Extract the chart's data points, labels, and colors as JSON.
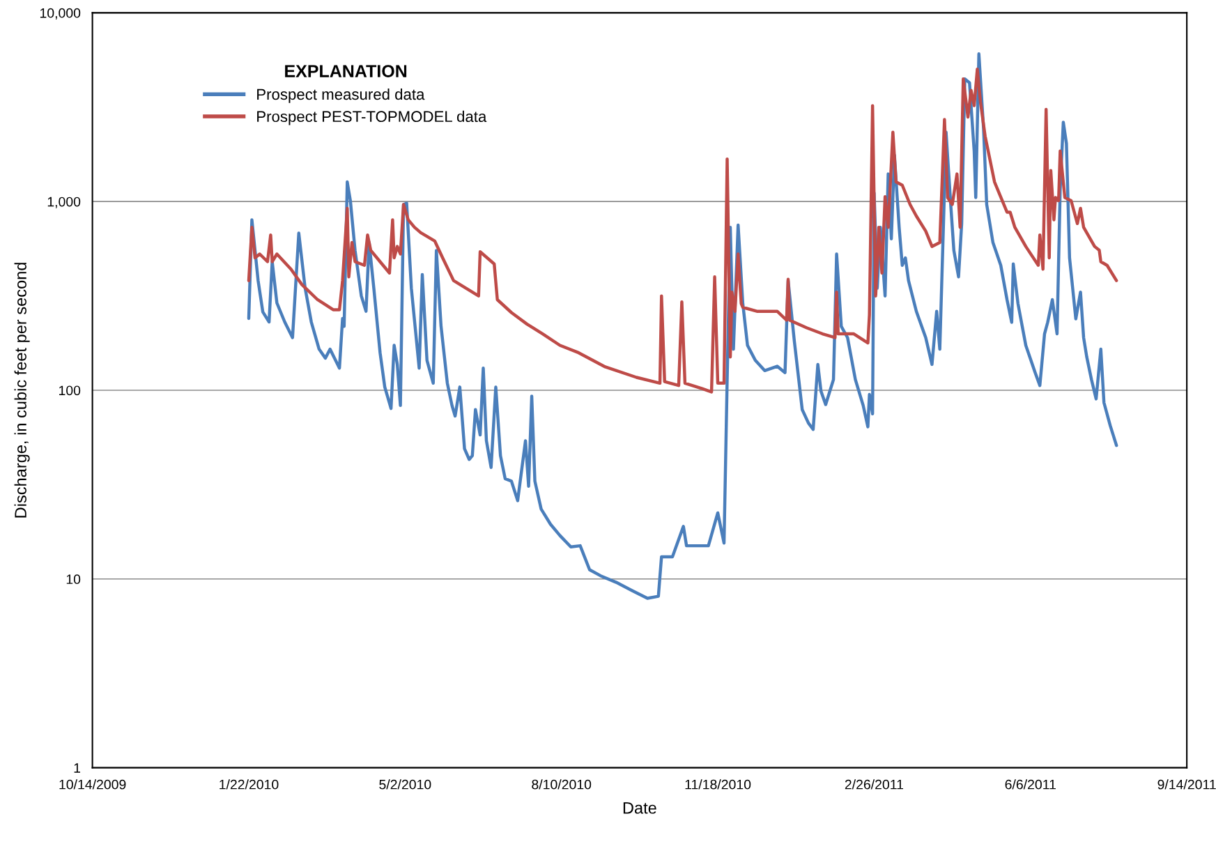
{
  "chart_data": {
    "type": "line",
    "xlabel": "Date",
    "ylabel": "Discharge, in cubic feet per second",
    "legend_title": "EXPLANATION",
    "legend": "top left",
    "grid": "y",
    "log": "y",
    "line_style": "solid",
    "marker": "none",
    "xlim": [
      "2009-10-14",
      "2011-09-14"
    ],
    "xticks": [
      {
        "value": "2009-10-14",
        "label": "10/14/2009"
      },
      {
        "value": "2010-01-22",
        "label": "1/22/2010"
      },
      {
        "value": "2010-05-02",
        "label": "5/2/2010"
      },
      {
        "value": "2010-08-10",
        "label": "8/10/2010"
      },
      {
        "value": "2010-11-18",
        "label": "11/18/2010"
      },
      {
        "value": "2011-02-26",
        "label": "2/26/2011"
      },
      {
        "value": "2011-06-06",
        "label": "6/6/2011"
      },
      {
        "value": "2011-09-14",
        "label": "9/14/2011"
      }
    ],
    "ylim": [
      1,
      10000
    ],
    "yticks": [
      1,
      10,
      100,
      {
        "value": 1000,
        "label": "1,000"
      },
      {
        "value": 10000,
        "label": "10,000"
      }
    ],
    "series": [
      {
        "name": "Prospect measured data",
        "color": "#4a7ebb",
        "x": [
          "2010-01-22",
          "2010-01-24",
          "2010-01-28",
          "2010-01-31",
          "2010-02-04",
          "2010-02-06",
          "2010-02-09",
          "2010-02-14",
          "2010-02-19",
          "2010-02-23",
          "2010-02-27",
          "2010-03-03",
          "2010-03-08",
          "2010-03-12",
          "2010-03-15",
          "2010-03-21",
          "2010-03-23",
          "2010-03-24",
          "2010-03-26",
          "2010-03-28",
          "2010-03-31",
          "2010-04-04",
          "2010-04-07",
          "2010-04-09",
          "2010-04-12",
          "2010-04-16",
          "2010-04-19",
          "2010-04-23",
          "2010-04-25",
          "2010-04-27",
          "2010-04-29",
          "2010-05-01",
          "2010-05-03",
          "2010-05-06",
          "2010-05-11",
          "2010-05-13",
          "2010-05-16",
          "2010-05-20",
          "2010-05-22",
          "2010-05-25",
          "2010-05-29",
          "2010-06-01",
          "2010-06-03",
          "2010-06-06",
          "2010-06-09",
          "2010-06-12",
          "2010-06-14",
          "2010-06-16",
          "2010-06-19",
          "2010-06-21",
          "2010-06-23",
          "2010-06-26",
          "2010-06-29",
          "2010-07-02",
          "2010-07-05",
          "2010-07-09",
          "2010-07-13",
          "2010-07-18",
          "2010-07-20",
          "2010-07-22",
          "2010-07-24",
          "2010-07-28",
          "2010-08-03",
          "2010-08-09",
          "2010-08-16",
          "2010-08-22",
          "2010-08-28",
          "2010-09-04",
          "2010-09-14",
          "2010-09-24",
          "2010-10-04",
          "2010-10-11",
          "2010-10-13",
          "2010-10-20",
          "2010-10-27",
          "2010-10-29",
          "2010-11-12",
          "2010-11-18",
          "2010-11-22",
          "2010-11-24",
          "2010-11-26",
          "2010-11-28",
          "2010-12-01",
          "2010-12-04",
          "2010-12-07",
          "2010-12-12",
          "2010-12-18",
          "2010-12-26",
          "2010-12-31",
          "2011-01-02",
          "2011-01-06",
          "2011-01-11",
          "2011-01-15",
          "2011-01-18",
          "2011-01-21",
          "2011-01-23",
          "2011-01-26",
          "2011-01-31",
          "2011-02-02",
          "2011-02-05",
          "2011-02-09",
          "2011-02-14",
          "2011-02-19",
          "2011-02-22",
          "2011-02-23",
          "2011-02-25",
          "2011-02-26",
          "2011-02-28",
          "2011-03-02",
          "2011-03-05",
          "2011-03-07",
          "2011-03-09",
          "2011-03-11",
          "2011-03-14",
          "2011-03-16",
          "2011-03-18",
          "2011-03-20",
          "2011-03-25",
          "2011-03-31",
          "2011-04-04",
          "2011-04-07",
          "2011-04-09",
          "2011-04-12",
          "2011-04-13",
          "2011-04-16",
          "2011-04-18",
          "2011-04-21",
          "2011-04-23",
          "2011-04-25",
          "2011-04-28",
          "2011-05-01",
          "2011-05-02",
          "2011-05-04",
          "2011-05-07",
          "2011-05-09",
          "2011-05-13",
          "2011-05-18",
          "2011-05-22",
          "2011-05-25",
          "2011-05-26",
          "2011-05-29",
          "2011-06-03",
          "2011-06-09",
          "2011-06-12",
          "2011-06-15",
          "2011-06-17",
          "2011-06-20",
          "2011-06-23",
          "2011-06-25",
          "2011-06-27",
          "2011-06-29",
          "2011-07-01",
          "2011-07-05",
          "2011-07-08",
          "2011-07-10",
          "2011-07-12",
          "2011-07-15",
          "2011-07-18",
          "2011-07-21",
          "2011-07-23",
          "2011-07-27",
          "2011-07-31"
        ],
        "values": [
          240,
          800,
          380,
          260,
          230,
          480,
          290,
          230,
          190,
          680,
          350,
          230,
          165,
          148,
          165,
          131,
          240,
          218,
          1270,
          1010,
          550,
          316,
          262,
          606,
          347,
          158,
          104,
          80,
          173,
          137,
          83,
          964,
          980,
          347,
          131,
          410,
          144,
          109,
          550,
          218,
          109,
          83,
          73,
          104,
          49,
          43,
          45,
          79,
          58,
          131,
          54,
          39,
          104,
          45,
          34,
          33,
          26,
          54,
          31,
          93,
          33,
          23.5,
          19.5,
          17,
          14.8,
          15,
          11.2,
          10.4,
          9.6,
          8.7,
          7.9,
          8.1,
          13.1,
          13.1,
          19,
          15,
          15,
          22.4,
          15.5,
          114,
          730,
          165,
          750,
          288,
          173,
          144,
          127,
          134,
          124,
          381,
          181,
          79,
          67,
          62,
          137,
          99,
          84,
          114,
          527,
          218,
          190,
          114,
          83,
          64,
          95,
          75,
          1110,
          347,
          730,
          316,
          1400,
          634,
          1760,
          730,
          459,
          503,
          381,
          262,
          190,
          137,
          262,
          165,
          1160,
          2330,
          964,
          550,
          399,
          764,
          4460,
          4260,
          1850,
          1050,
          6060,
          2430,
          964,
          606,
          459,
          302,
          229,
          467,
          288,
          173,
          124,
          106,
          199,
          229,
          302,
          199,
          1160,
          2630,
          2030,
          503,
          239,
          331,
          190,
          150,
          114,
          90,
          165,
          86,
          65,
          51
        ]
      },
      {
        "name": "Prospect PEST-TOPMODEL data",
        "color": "#be4b48",
        "x": [
          "2010-01-22",
          "2010-01-24",
          "2010-01-26",
          "2010-01-29",
          "2010-02-03",
          "2010-02-05",
          "2010-02-06",
          "2010-02-09",
          "2010-02-18",
          "2010-02-25",
          "2010-03-07",
          "2010-03-17",
          "2010-03-21",
          "2010-03-23",
          "2010-03-26",
          "2010-03-27",
          "2010-03-29",
          "2010-03-31",
          "2010-04-06",
          "2010-04-08",
          "2010-04-10",
          "2010-04-16",
          "2010-04-22",
          "2010-04-24",
          "2010-04-25",
          "2010-04-27",
          "2010-04-29",
          "2010-05-01",
          "2010-05-04",
          "2010-05-08",
          "2010-05-12",
          "2010-05-21",
          "2010-05-26",
          "2010-06-02",
          "2010-06-10",
          "2010-06-18",
          "2010-06-19",
          "2010-06-28",
          "2010-06-30",
          "2010-07-09",
          "2010-07-19",
          "2010-07-29",
          "2010-08-09",
          "2010-08-21",
          "2010-09-07",
          "2010-09-27",
          "2010-10-12",
          "2010-10-13",
          "2010-10-15",
          "2010-10-24",
          "2010-10-26",
          "2010-10-28",
          "2010-11-08",
          "2010-11-14",
          "2010-11-16",
          "2010-11-18",
          "2010-11-22",
          "2010-11-24",
          "2010-11-26",
          "2010-11-27",
          "2010-11-29",
          "2010-12-01",
          "2010-12-03",
          "2010-12-04",
          "2010-12-13",
          "2010-12-26",
          "2011-01-01",
          "2011-01-02",
          "2011-01-03",
          "2011-01-14",
          "2011-01-24",
          "2011-02-01",
          "2011-02-02",
          "2011-02-03",
          "2011-02-13",
          "2011-02-22",
          "2011-02-23",
          "2011-02-25",
          "2011-02-27",
          "2011-03-01",
          "2011-03-03",
          "2011-03-05",
          "2011-03-07",
          "2011-03-10",
          "2011-03-12",
          "2011-03-16",
          "2011-03-21",
          "2011-03-25",
          "2011-03-31",
          "2011-04-04",
          "2011-04-09",
          "2011-04-12",
          "2011-04-14",
          "2011-04-17",
          "2011-04-20",
          "2011-04-22",
          "2011-04-24",
          "2011-04-27",
          "2011-04-29",
          "2011-05-01",
          "2011-05-03",
          "2011-05-05",
          "2011-05-08",
          "2011-05-14",
          "2011-05-22",
          "2011-05-24",
          "2011-05-27",
          "2011-06-03",
          "2011-06-11",
          "2011-06-12",
          "2011-06-14",
          "2011-06-16",
          "2011-06-18",
          "2011-06-19",
          "2011-06-21",
          "2011-06-22",
          "2011-06-24",
          "2011-06-25",
          "2011-06-28",
          "2011-07-02",
          "2011-07-06",
          "2011-07-08",
          "2011-07-10",
          "2011-07-17",
          "2011-07-20",
          "2011-07-21",
          "2011-07-25",
          "2011-07-31"
        ],
        "values": [
          381,
          730,
          503,
          527,
          480,
          665,
          480,
          527,
          438,
          363,
          302,
          267,
          267,
          381,
          920,
          399,
          606,
          480,
          459,
          665,
          552,
          480,
          418,
          800,
          503,
          578,
          527,
          964,
          800,
          730,
          684,
          617,
          503,
          381,
          347,
          316,
          542,
          467,
          302,
          258,
          224,
          199,
          173,
          158,
          133,
          117,
          109,
          316,
          111,
          106,
          294,
          109,
          102,
          98,
          399,
          109,
          109,
          1680,
          150,
          331,
          262,
          527,
          288,
          275,
          262,
          262,
          235,
          387,
          235,
          214,
          199,
          190,
          331,
          199,
          199,
          178,
          251,
          3220,
          316,
          730,
          418,
          1060,
          730,
          2330,
          1270,
          1220,
          964,
          838,
          697,
          578,
          606,
          2720,
          1050,
          964,
          1400,
          730,
          4460,
          2800,
          3880,
          3220,
          5030,
          3380,
          2220,
          1270,
          878,
          878,
          730,
          578,
          459,
          665,
          438,
          3080,
          503,
          1460,
          800,
          1050,
          1010,
          1850,
          1050,
          1010,
          764,
          920,
          730,
          578,
          552,
          480,
          459,
          381
        ]
      }
    ]
  }
}
